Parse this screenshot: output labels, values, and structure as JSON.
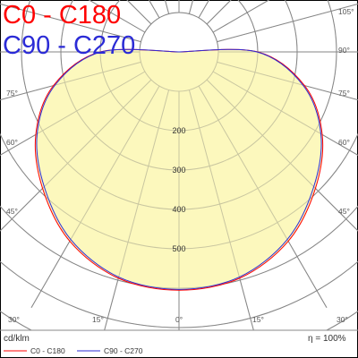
{
  "colors": {
    "c0_c180": "#ff0000",
    "c90_c270": "#2b2bd6",
    "fill": "#fcf7b7",
    "grid": "#8a8a8a",
    "text": "#333333"
  },
  "legend": {
    "top": {
      "c0_c180": "C0 - C180",
      "c90_c270": "C90 - C270"
    },
    "bottom": {
      "c0_c180": "C0 - C180",
      "c90_c270": "C90 - C270"
    }
  },
  "footer": {
    "unit": "cd/klm",
    "efficiency": "η = 100%"
  },
  "chart_data": {
    "type": "polar",
    "radial_ticks": [
      {
        "value": 200,
        "label": "200"
      },
      {
        "value": 300,
        "label": "300"
      },
      {
        "value": 400,
        "label": "400"
      },
      {
        "value": 500,
        "label": "500"
      }
    ],
    "angle_ticks": [
      {
        "angle": 105,
        "left": "",
        "right": "105°"
      },
      {
        "angle": 90,
        "left": "",
        "right": "90°"
      },
      {
        "angle": 75,
        "left": "75°",
        "right": "75°"
      },
      {
        "angle": 60,
        "left": "60°",
        "right": "60°"
      },
      {
        "angle": 45,
        "left": "45°",
        "right": "45°"
      },
      {
        "angle": 30,
        "left": "30°",
        "right": "30°"
      },
      {
        "angle": 15,
        "left": "15°",
        "right": "15°"
      },
      {
        "angle": 0,
        "center": "0°"
      }
    ],
    "series": [
      {
        "name": "C0 - C180",
        "angles": [
          0,
          15,
          30,
          45,
          60,
          75,
          90,
          105
        ],
        "values": [
          605,
          595,
          555,
          490,
          420,
          330,
          200,
          0
        ]
      },
      {
        "name": "C90 - C270",
        "angles": [
          0,
          15,
          30,
          45,
          60,
          75,
          90,
          105
        ],
        "values": [
          603,
          592,
          550,
          484,
          416,
          326,
          198,
          0
        ]
      }
    ]
  }
}
